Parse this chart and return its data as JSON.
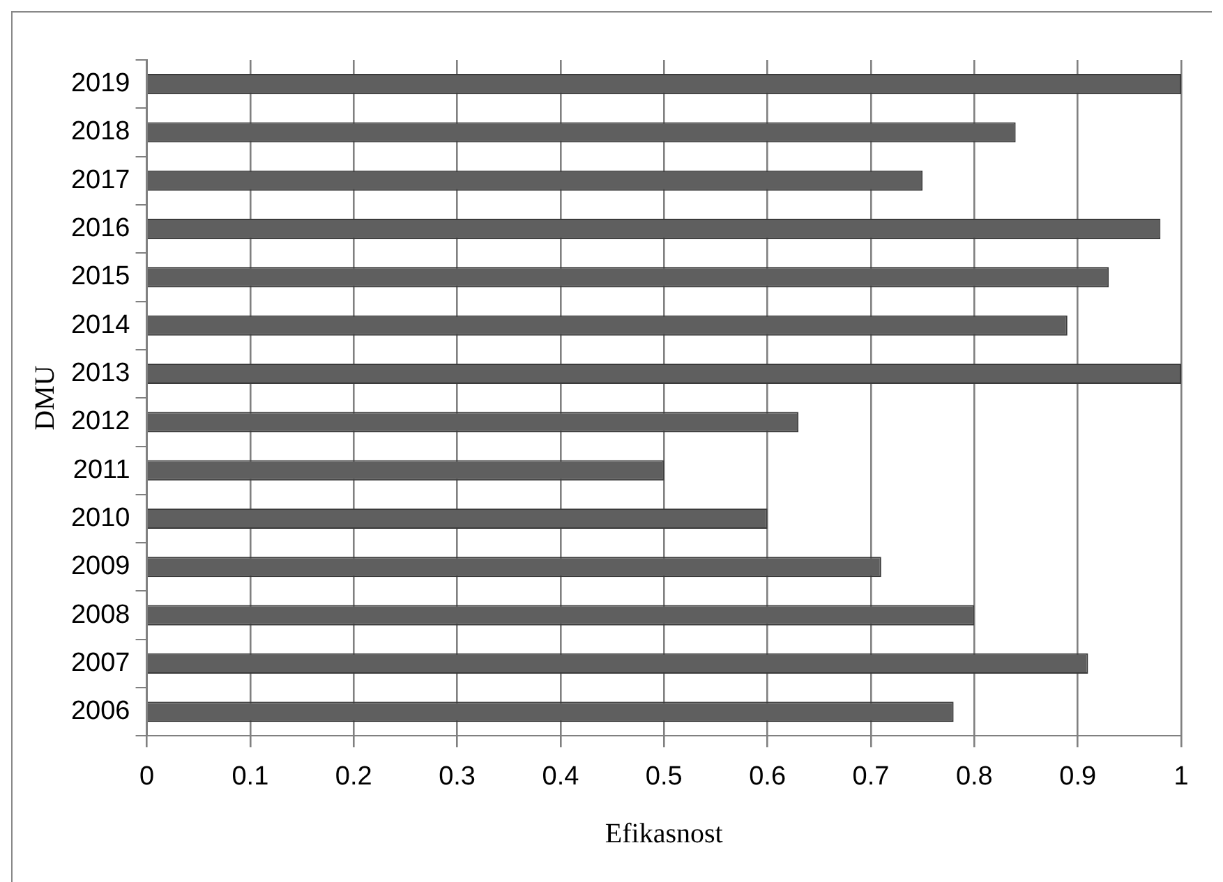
{
  "chart_data": {
    "type": "bar",
    "orientation": "horizontal",
    "xlabel": "Efikasnost",
    "ylabel": "DMU",
    "categories": [
      "2019",
      "2018",
      "2017",
      "2016",
      "2015",
      "2014",
      "2013",
      "2012",
      "2011",
      "2010",
      "2009",
      "2008",
      "2007",
      "2006"
    ],
    "values": [
      1,
      0.84,
      0.75,
      0.98,
      0.93,
      0.89,
      1,
      0.63,
      0.5,
      0.6,
      0.71,
      0.8,
      0.91,
      0.78
    ],
    "color": "#5f5f5f",
    "xlim": [
      0,
      1
    ],
    "xticks": [
      0,
      0.1,
      0.2,
      0.3,
      0.4,
      0.5,
      0.6,
      0.7,
      0.8,
      0.9,
      1
    ],
    "grid": "x",
    "legend": false
  }
}
